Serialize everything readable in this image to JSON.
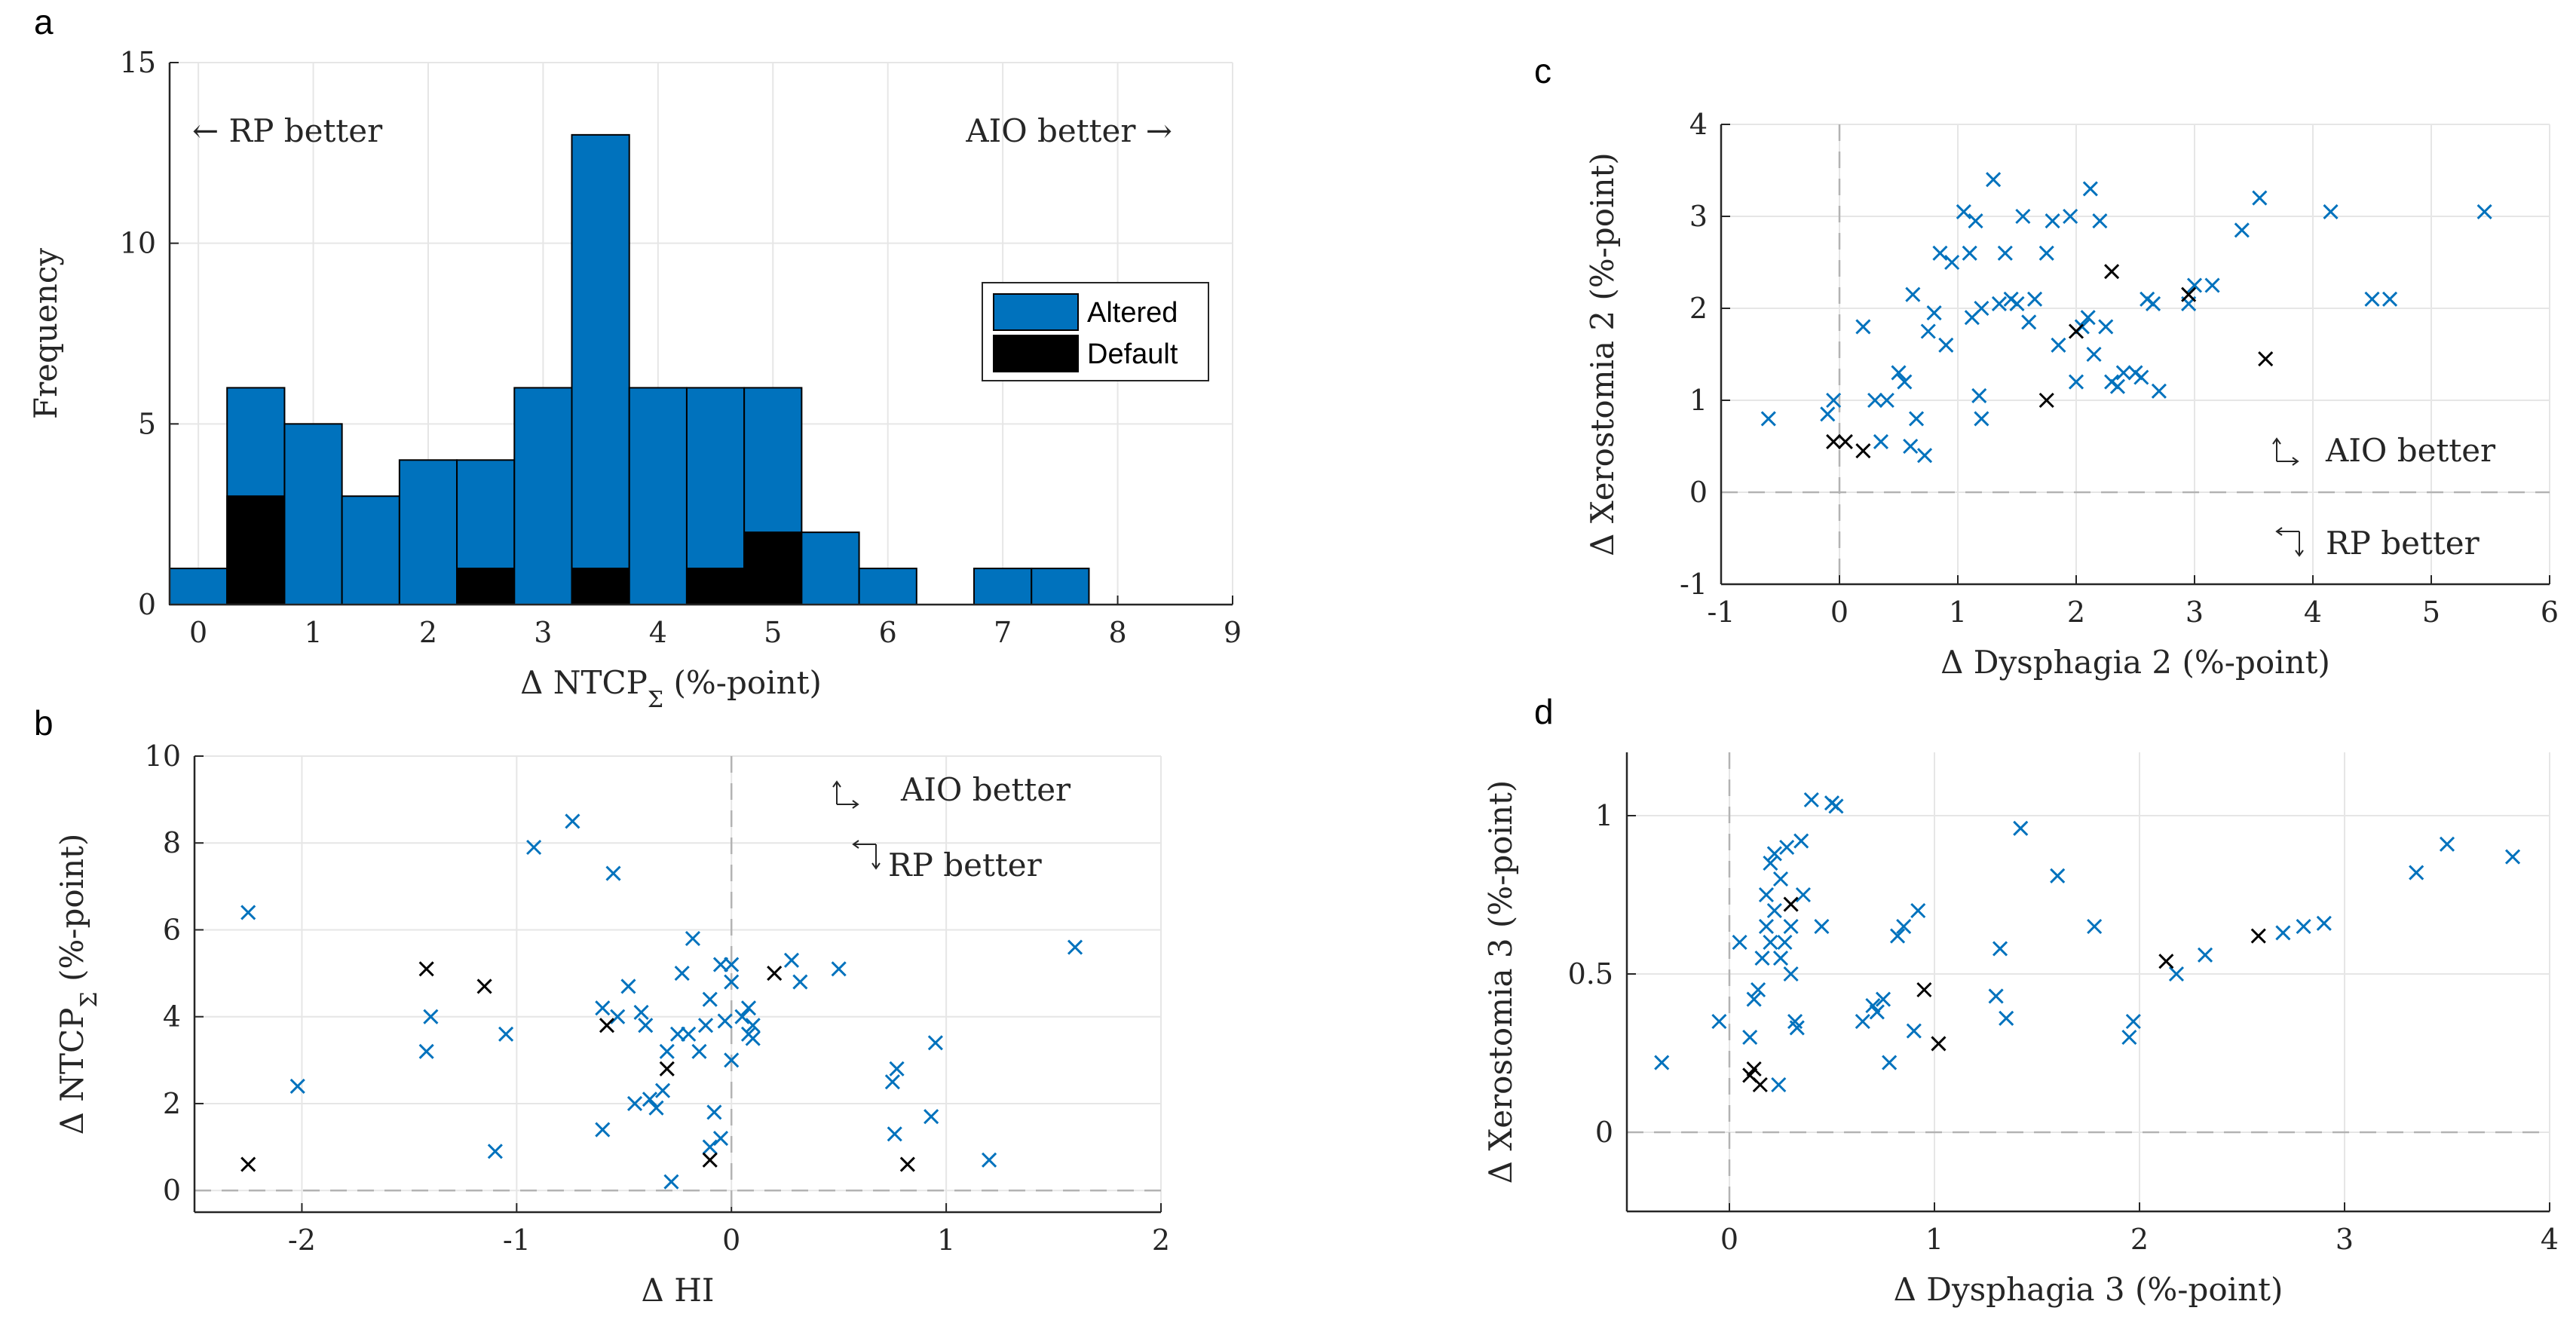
{
  "colors": {
    "altered": "#0072BD",
    "default": "#000000",
    "grid": "#e6e6e6",
    "zero_line": "#b3b3b3"
  },
  "chart_data": [
    {
      "panel": "a",
      "type": "bar",
      "xlabel": "Δ NTCP",
      "xlabel_sub": "Σ",
      "xlabel_suffix": " (%-point)",
      "ylabel": "Frequency",
      "xlim": [
        -0.25,
        9.0
      ],
      "ylim": [
        0,
        15
      ],
      "xticks": [
        "0",
        "1",
        "2",
        "3",
        "4",
        "5",
        "6",
        "7",
        "8",
        "9"
      ],
      "yticks": [
        "0",
        "5",
        "10",
        "15"
      ],
      "bin_width": 0.5,
      "bin_starts": [
        -0.25,
        0.25,
        0.75,
        1.25,
        1.75,
        2.25,
        2.75,
        3.25,
        3.75,
        4.25,
        4.75,
        5.25,
        5.75,
        6.25,
        6.75,
        7.25,
        7.75
      ],
      "series": [
        {
          "name": "Altered",
          "values": [
            1,
            6,
            5,
            3,
            4,
            4,
            6,
            13,
            6,
            6,
            6,
            2,
            1,
            0,
            1,
            1,
            0
          ]
        },
        {
          "name": "Default",
          "values": [
            0,
            3,
            0,
            0,
            0,
            1,
            0,
            1,
            0,
            1,
            2,
            0,
            0,
            0,
            0,
            0,
            0
          ]
        }
      ],
      "annotations": [
        "← RP better",
        "AIO better →"
      ],
      "grid": true,
      "legend_position": "right"
    },
    {
      "panel": "b",
      "type": "scatter",
      "xlabel": "Δ HI",
      "ylabel": "Δ NTCP",
      "ylabel_sub": "Σ",
      "ylabel_suffix": " (%-point)",
      "xlim": [
        -2.5,
        2.0
      ],
      "ylim": [
        -0.5,
        10
      ],
      "xticks": [
        "-2",
        "-1",
        "0",
        "1",
        "2"
      ],
      "yticks": [
        "0",
        "2",
        "4",
        "6",
        "8",
        "10"
      ],
      "annotations": [
        "AIO better",
        "RP better"
      ],
      "grid": true,
      "series": [
        {
          "name": "Altered",
          "x": [
            -2.25,
            -2.02,
            -1.42,
            -1.4,
            -1.1,
            -1.05,
            -0.92,
            -0.74,
            -0.55,
            -0.6,
            -0.6,
            -0.53,
            -0.48,
            -0.45,
            -0.42,
            -0.4,
            -0.38,
            -0.35,
            -0.32,
            -0.3,
            -0.28,
            -0.25,
            -0.23,
            -0.2,
            -0.18,
            -0.15,
            -0.12,
            -0.1,
            -0.1,
            -0.08,
            -0.05,
            -0.05,
            -0.03,
            0.0,
            0.0,
            0.0,
            0.05,
            0.08,
            0.08,
            0.1,
            0.1,
            0.28,
            0.32,
            0.5,
            0.75,
            0.76,
            0.77,
            0.93,
            0.95,
            1.2,
            1.6
          ],
          "y": [
            6.4,
            2.4,
            3.2,
            4.0,
            0.9,
            3.6,
            7.9,
            8.5,
            7.3,
            4.2,
            1.4,
            4.0,
            4.7,
            2.0,
            4.1,
            3.8,
            2.1,
            1.9,
            2.3,
            3.2,
            0.2,
            3.6,
            5.0,
            3.6,
            5.8,
            3.2,
            3.8,
            1.0,
            4.4,
            1.8,
            5.2,
            1.2,
            3.9,
            5.2,
            4.8,
            3.0,
            4.0,
            3.6,
            4.2,
            3.8,
            3.5,
            5.3,
            4.8,
            5.1,
            2.5,
            1.3,
            2.8,
            1.7,
            3.4,
            0.7,
            5.6
          ]
        },
        {
          "name": "Default",
          "x": [
            -2.25,
            -1.42,
            -1.15,
            -0.58,
            -0.3,
            -0.1,
            0.2,
            0.82
          ],
          "y": [
            0.6,
            5.1,
            4.7,
            3.8,
            2.8,
            0.7,
            5.0,
            0.6
          ]
        }
      ]
    },
    {
      "panel": "c",
      "type": "scatter",
      "xlabel": "Δ Dysphagia 2 (%-point)",
      "ylabel": "Δ Xerostomia 2 (%-point)",
      "xlim": [
        -1,
        6
      ],
      "ylim": [
        -1,
        4
      ],
      "xticks": [
        "-1",
        "0",
        "1",
        "2",
        "3",
        "4",
        "5",
        "6"
      ],
      "yticks": [
        "-1",
        "0",
        "1",
        "2",
        "3",
        "4"
      ],
      "annotations": [
        "AIO better",
        "RP better"
      ],
      "grid": true,
      "series": [
        {
          "name": "Altered",
          "x": [
            -0.6,
            -0.1,
            -0.05,
            0.2,
            0.3,
            0.35,
            0.4,
            0.5,
            0.55,
            0.6,
            0.62,
            0.65,
            0.72,
            0.75,
            0.8,
            0.85,
            0.9,
            0.95,
            1.05,
            1.1,
            1.12,
            1.15,
            1.18,
            1.2,
            1.2,
            1.3,
            1.35,
            1.4,
            1.45,
            1.5,
            1.55,
            1.6,
            1.65,
            1.75,
            1.8,
            1.85,
            1.95,
            2.0,
            2.05,
            2.1,
            2.12,
            2.15,
            2.2,
            2.25,
            2.3,
            2.35,
            2.4,
            2.5,
            2.55,
            2.6,
            2.65,
            2.7,
            2.95,
            3.0,
            3.15,
            3.4,
            3.55,
            4.15,
            4.5,
            4.65,
            5.45
          ],
          "y": [
            0.8,
            0.85,
            1.0,
            1.8,
            1.0,
            0.55,
            1.0,
            1.3,
            1.2,
            0.5,
            2.15,
            0.8,
            0.4,
            1.75,
            1.95,
            2.6,
            1.6,
            2.5,
            3.05,
            2.6,
            1.9,
            2.95,
            1.05,
            0.8,
            2.0,
            3.4,
            2.05,
            2.6,
            2.1,
            2.05,
            3.0,
            1.85,
            2.1,
            2.6,
            2.95,
            1.6,
            3.0,
            1.2,
            1.8,
            1.9,
            3.3,
            1.5,
            2.95,
            1.8,
            1.2,
            1.15,
            1.3,
            1.3,
            1.25,
            2.1,
            2.05,
            1.1,
            2.05,
            2.25,
            2.25,
            2.85,
            3.2,
            3.05,
            2.1,
            2.1,
            3.05
          ]
        },
        {
          "name": "Default",
          "x": [
            -0.05,
            0.05,
            0.2,
            1.75,
            2.0,
            2.3,
            2.95,
            3.6
          ],
          "y": [
            0.55,
            0.55,
            0.45,
            1.0,
            1.75,
            2.4,
            2.15,
            1.45
          ]
        }
      ]
    },
    {
      "panel": "d",
      "type": "scatter",
      "xlabel": "Δ Dysphagia 3 (%-point)",
      "ylabel": "Δ Xerostomia 3 (%-point)",
      "xlim": [
        -0.5,
        4
      ],
      "ylim": [
        -0.25,
        1.2
      ],
      "xticks": [
        "0",
        "1",
        "2",
        "3",
        "4"
      ],
      "yticks": [
        "0",
        "0.5",
        "1"
      ],
      "grid": true,
      "series": [
        {
          "name": "Altered",
          "x": [
            -0.33,
            -0.05,
            0.05,
            0.1,
            0.12,
            0.14,
            0.16,
            0.18,
            0.18,
            0.2,
            0.2,
            0.22,
            0.22,
            0.24,
            0.25,
            0.25,
            0.27,
            0.28,
            0.3,
            0.3,
            0.32,
            0.33,
            0.35,
            0.36,
            0.4,
            0.45,
            0.5,
            0.52,
            0.65,
            0.7,
            0.72,
            0.75,
            0.78,
            0.82,
            0.85,
            0.9,
            0.92,
            1.3,
            1.32,
            1.35,
            1.42,
            1.6,
            1.78,
            1.95,
            1.97,
            2.18,
            2.32,
            2.7,
            2.8,
            2.9,
            3.35,
            3.5,
            3.82
          ],
          "y": [
            0.22,
            0.35,
            0.6,
            0.3,
            0.42,
            0.45,
            0.55,
            0.65,
            0.75,
            0.6,
            0.85,
            0.7,
            0.88,
            0.15,
            0.55,
            0.8,
            0.6,
            0.9,
            0.5,
            0.65,
            0.35,
            0.33,
            0.92,
            0.75,
            1.05,
            0.65,
            1.04,
            1.03,
            0.35,
            0.4,
            0.38,
            0.42,
            0.22,
            0.62,
            0.65,
            0.32,
            0.7,
            0.43,
            0.58,
            0.36,
            0.96,
            0.81,
            0.65,
            0.3,
            0.35,
            0.5,
            0.56,
            0.63,
            0.65,
            0.66,
            0.82,
            0.91,
            0.87
          ]
        },
        {
          "name": "Default",
          "x": [
            0.1,
            0.12,
            0.15,
            0.3,
            0.95,
            1.02,
            2.13,
            2.58
          ],
          "y": [
            0.18,
            0.2,
            0.15,
            0.72,
            0.45,
            0.28,
            0.54,
            0.62
          ]
        }
      ]
    }
  ],
  "panel_labels": [
    "a",
    "b",
    "c",
    "d"
  ]
}
